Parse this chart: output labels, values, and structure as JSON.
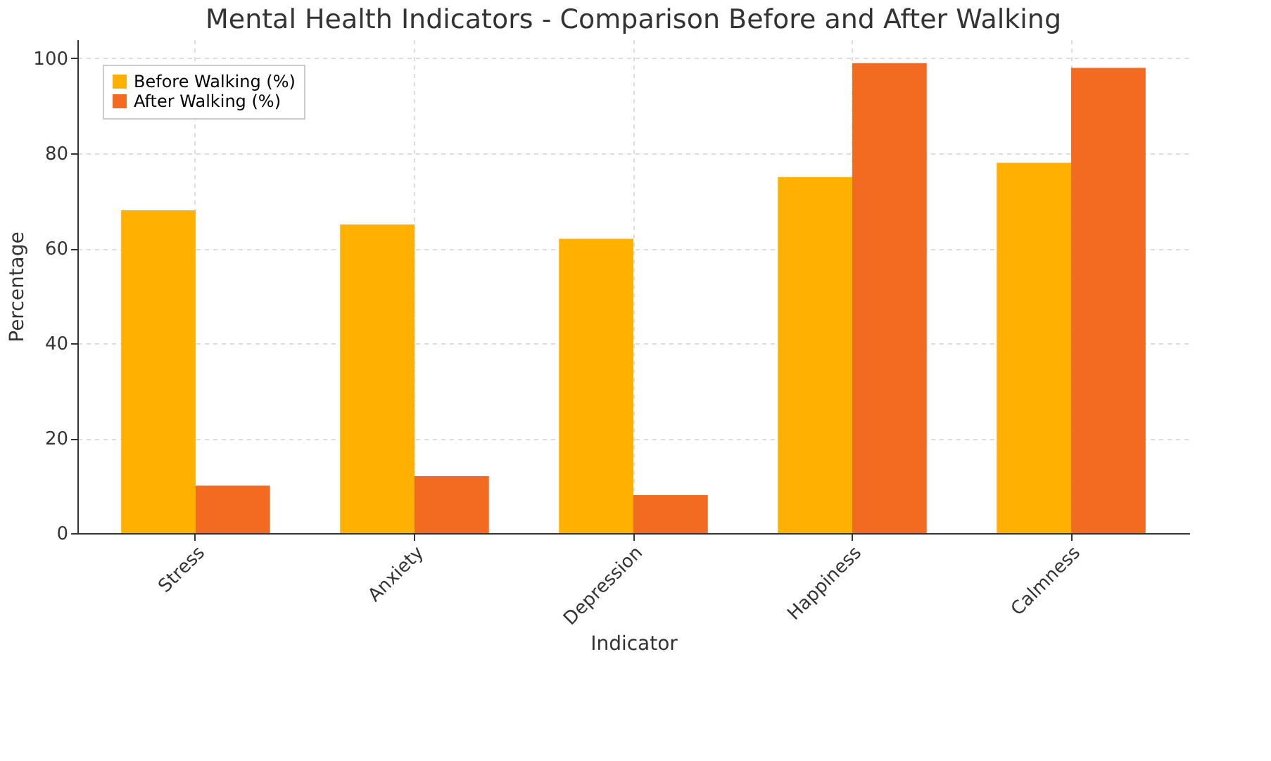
{
  "chart_data": {
    "type": "bar",
    "title": "Mental Health Indicators - Comparison Before and After Walking",
    "xlabel": "Indicator",
    "ylabel": "Percentage",
    "categories": [
      "Stress",
      "Anxiety",
      "Depression",
      "Happiness",
      "Calmness"
    ],
    "series": [
      {
        "name": "Before Walking (%)",
        "color": "#ffb000",
        "values": [
          68,
          65,
          62,
          75,
          78
        ]
      },
      {
        "name": "After Walking (%)",
        "color": "#f26b21",
        "values": [
          10,
          12,
          8,
          99,
          98
        ]
      }
    ],
    "ylim": [
      0,
      104
    ],
    "yticks": [
      0,
      20,
      40,
      60,
      80,
      100
    ],
    "grid": true,
    "legend": "top left"
  }
}
